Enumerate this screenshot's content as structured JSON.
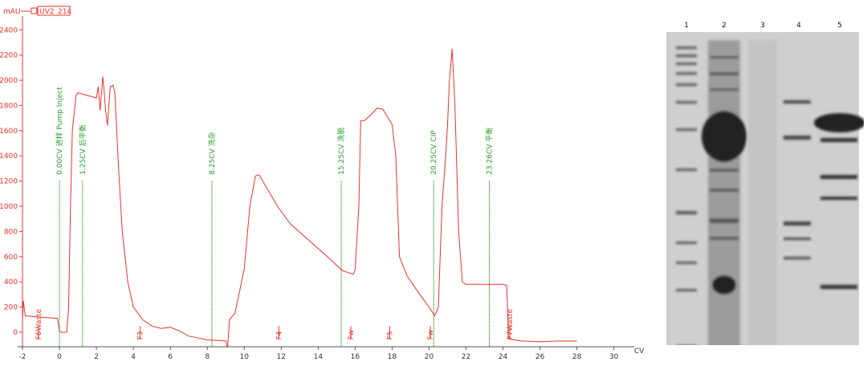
{
  "chart_data": {
    "type": "line",
    "y_label": "mAU",
    "x_label": "CV",
    "series": [
      {
        "name": "UV2_214",
        "color": "#e8332a",
        "x": [
          -2,
          -1.95,
          -1.85,
          -1,
          -0.1,
          0,
          0.1,
          0.4,
          0.5,
          0.6,
          0.7,
          0.9,
          1.0,
          1.5,
          2.0,
          2.1,
          2.2,
          2.35,
          2.5,
          2.6,
          2.75,
          2.9,
          3.0,
          3.2,
          3.4,
          3.7,
          4.0,
          4.5,
          5.0,
          5.5,
          6.0,
          6.5,
          7,
          8,
          9,
          9.1,
          9.2,
          9.5,
          10,
          10.3,
          10.6,
          10.8,
          11.2,
          11.8,
          12.5,
          13.5,
          14.5,
          15.3,
          15.9,
          16.0,
          16.2,
          16.3,
          16.5,
          16.8,
          17.2,
          17.5,
          18,
          18.2,
          18.4,
          18.8,
          19.5,
          20,
          20.3,
          20.5,
          20.7,
          20.9,
          21.0,
          21.1,
          21.25,
          21.4,
          21.6,
          21.8,
          22.0,
          22.5,
          23,
          24,
          24.2,
          24.3,
          24.6,
          25,
          26,
          27,
          28
        ],
        "values": [
          100,
          250,
          130,
          120,
          110,
          10,
          0,
          0,
          200,
          1000,
          1600,
          1880,
          1900,
          1880,
          1860,
          1950,
          1760,
          2030,
          1760,
          1640,
          1950,
          1960,
          1900,
          1300,
          800,
          400,
          200,
          100,
          50,
          30,
          40,
          10,
          -30,
          -60,
          -70,
          -120,
          100,
          150,
          500,
          1000,
          1240,
          1250,
          1150,
          1000,
          860,
          730,
          600,
          490,
          460,
          500,
          1000,
          1680,
          1680,
          1720,
          1780,
          1770,
          1650,
          1400,
          600,
          450,
          300,
          200,
          130,
          200,
          1000,
          1400,
          1650,
          2000,
          2250,
          1800,
          800,
          400,
          380,
          380,
          380,
          380,
          370,
          -50,
          -60,
          -70,
          -75,
          -70,
          -70
        ]
      }
    ],
    "xlim": [
      -2.26,
      31.1
    ],
    "ylim": [
      -115,
      2510
    ],
    "xticks": [
      -2,
      0,
      2,
      4,
      6,
      8,
      10,
      12,
      14,
      16,
      18,
      20,
      22,
      24,
      26,
      28,
      30
    ],
    "yticks": [
      0,
      200,
      400,
      600,
      800,
      1000,
      1200,
      1400,
      1600,
      1800,
      2000,
      2200,
      2400
    ],
    "events": [
      {
        "x": 0,
        "label": "0.00CV 进样 Pump Inject"
      },
      {
        "x": 1.25,
        "label": "1.25CV 后平衡"
      },
      {
        "x": 8.25,
        "label": "8.25CV 洗杂"
      },
      {
        "x": 15.25,
        "label": "15.25CV 洗脱"
      },
      {
        "x": 20.25,
        "label": "20.25CV CIP"
      },
      {
        "x": 23.26,
        "label": "23.26CV 平衡"
      }
    ],
    "fractions": [
      {
        "x": -1,
        "label": "F6Waste"
      },
      {
        "x": 4.5,
        "label": "F3"
      },
      {
        "x": 12,
        "label": "F4"
      },
      {
        "x": 15.9,
        "label": "Fw"
      },
      {
        "x": 18,
        "label": "F5"
      },
      {
        "x": 20.2,
        "label": "Fw"
      },
      {
        "x": 24.5,
        "label": "F7Waste"
      }
    ]
  },
  "gel": {
    "lanes": [
      "1",
      "2",
      "3",
      "4",
      "5"
    ]
  }
}
